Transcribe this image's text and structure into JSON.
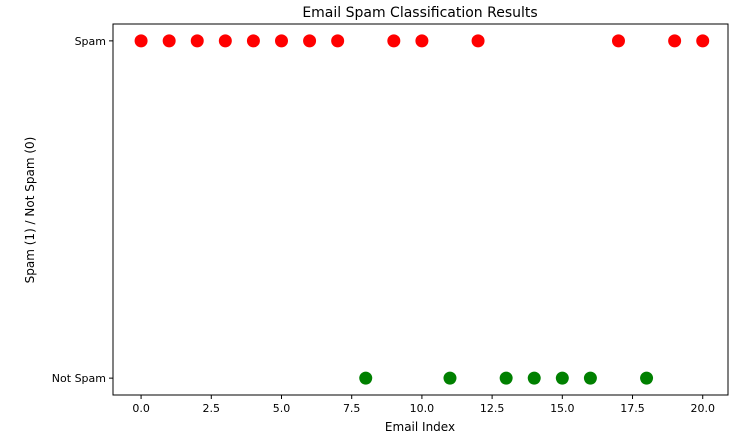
{
  "chart_data": {
    "type": "scatter",
    "title": "Email Spam Classification Results",
    "xlabel": "Email Index",
    "ylabel": "Spam (1) / Not Spam (0)",
    "xlim": [
      -1,
      20.9
    ],
    "ylim": [
      -0.05,
      1.05
    ],
    "x_ticks": [
      0.0,
      2.5,
      5.0,
      7.5,
      10.0,
      12.5,
      15.0,
      17.5,
      20.0
    ],
    "x_tick_labels": [
      "0.0",
      "2.5",
      "5.0",
      "7.5",
      "10.0",
      "12.5",
      "15.0",
      "17.5",
      "20.0"
    ],
    "y_ticks": [
      0,
      1
    ],
    "y_tick_labels": [
      "Not Spam",
      "Spam"
    ],
    "grid": false,
    "colors": {
      "spam": "#ff0000",
      "not_spam": "#008000"
    },
    "points": [
      {
        "x": 0,
        "y": 1
      },
      {
        "x": 1,
        "y": 1
      },
      {
        "x": 2,
        "y": 1
      },
      {
        "x": 3,
        "y": 1
      },
      {
        "x": 4,
        "y": 1
      },
      {
        "x": 5,
        "y": 1
      },
      {
        "x": 6,
        "y": 1
      },
      {
        "x": 7,
        "y": 1
      },
      {
        "x": 8,
        "y": 0
      },
      {
        "x": 9,
        "y": 1
      },
      {
        "x": 10,
        "y": 1
      },
      {
        "x": 11,
        "y": 0
      },
      {
        "x": 12,
        "y": 1
      },
      {
        "x": 13,
        "y": 0
      },
      {
        "x": 14,
        "y": 0
      },
      {
        "x": 15,
        "y": 0
      },
      {
        "x": 16,
        "y": 0
      },
      {
        "x": 17,
        "y": 1
      },
      {
        "x": 18,
        "y": 0
      },
      {
        "x": 19,
        "y": 1
      },
      {
        "x": 20,
        "y": 1
      }
    ]
  }
}
